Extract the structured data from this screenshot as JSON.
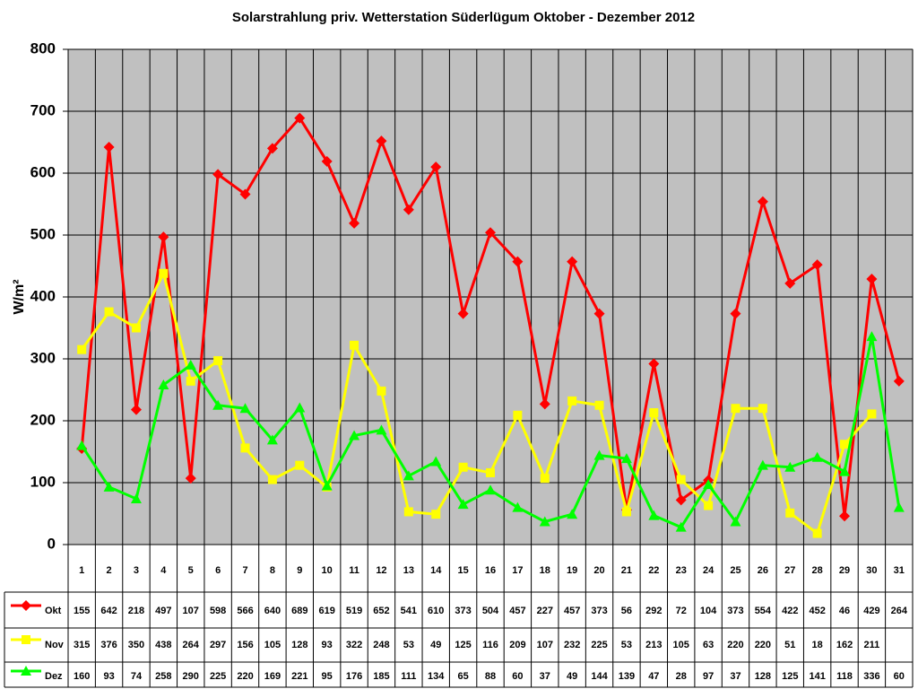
{
  "chart_data": {
    "type": "line",
    "title": "Solarstrahlung priv. Wetterstation Süderlügum Oktober - Dezember 2012",
    "y_label": "W/m²",
    "categories": [
      "1",
      "2",
      "3",
      "4",
      "5",
      "6",
      "7",
      "8",
      "9",
      "10",
      "11",
      "12",
      "13",
      "14",
      "15",
      "16",
      "17",
      "18",
      "19",
      "20",
      "21",
      "22",
      "23",
      "24",
      "25",
      "26",
      "27",
      "28",
      "29",
      "30",
      "31"
    ],
    "series": [
      {
        "name": "Okt",
        "color": "#ff0000",
        "marker": "diamond",
        "values": [
          155,
          642,
          218,
          497,
          107,
          598,
          566,
          640,
          689,
          619,
          519,
          652,
          541,
          610,
          373,
          504,
          457,
          227,
          457,
          373,
          56,
          292,
          72,
          104,
          373,
          554,
          422,
          452,
          46,
          429,
          264
        ]
      },
      {
        "name": "Nov",
        "color": "#ffff00",
        "marker": "square",
        "values": [
          315,
          376,
          350,
          438,
          264,
          297,
          156,
          105,
          128,
          93,
          322,
          248,
          53,
          49,
          125,
          116,
          209,
          107,
          232,
          225,
          53,
          213,
          105,
          63,
          220,
          220,
          51,
          18,
          162,
          211,
          null
        ]
      },
      {
        "name": "Dez",
        "color": "#00ff00",
        "marker": "triangle",
        "values": [
          160,
          93,
          74,
          258,
          290,
          225,
          220,
          169,
          221,
          95,
          176,
          185,
          111,
          134,
          65,
          88,
          60,
          37,
          49,
          144,
          139,
          47,
          28,
          97,
          37,
          128,
          125,
          141,
          118,
          336,
          60
        ]
      }
    ],
    "ylim": [
      0,
      800
    ],
    "yticks": [
      0,
      100,
      200,
      300,
      400,
      500,
      600,
      700,
      800
    ],
    "grid": true
  }
}
